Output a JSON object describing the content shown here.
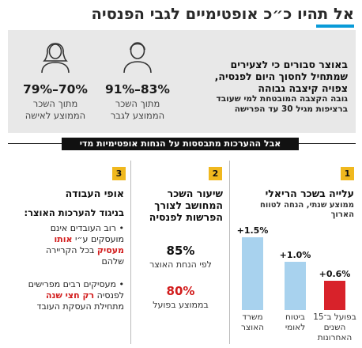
{
  "title": "אל תהיו כ״כ אופטימיים לגבי הפנסיה",
  "colors": {
    "accent": "#0a9bd8",
    "bar_blue": "#a8d2ee",
    "bar_red": "#d8222a",
    "badge": "#f0b81e",
    "highlight": "#d21c1c"
  },
  "intro": {
    "lead": [
      "באוצר סבורים כי לצעירים",
      "שמתחיל לחסוך היום לפנסיה,",
      "צפויה קיצבה גבוהה"
    ],
    "detail": [
      "גובה הקצבה המובטחת למי שעובד",
      "ברציפות מגיל 30 עד הפרישה"
    ],
    "men": {
      "icon": "male-avatar-icon",
      "range": "91%–83%",
      "sub1": "מתוך השכר",
      "sub2": "הממוצע לגבר"
    },
    "women": {
      "icon": "female-avatar-icon",
      "range": "79%–70%",
      "sub1": "מתוך השכר",
      "sub2": "הממוצע לאישה"
    }
  },
  "banner": "אבל ההערכות מתבססות על הנחות אופטימיות מדי",
  "col1": {
    "badge": "1",
    "title": "עלייה בשכר הריאלי",
    "sub": [
      "ממוצע שנתי, הנחה לטווח",
      "הארוך"
    ],
    "chart_data": {
      "type": "bar",
      "categories": [
        "משרד האוצר",
        "ביטוח לאומי",
        "בפועל ב־15 השנים האחרונות"
      ],
      "values": [
        1.5,
        1.0,
        0.6
      ],
      "value_labels": [
        "+1.5%",
        "+1.0%",
        "+0.6%"
      ],
      "label_lines": [
        [
          "משרד",
          "האוצר"
        ],
        [
          "ביטוח",
          "לאומי"
        ],
        [
          "בפועל ב־15",
          "השנים",
          "האחרונות"
        ]
      ]
    }
  },
  "col2": {
    "badge": "2",
    "title": [
      "שיעור השכר",
      "המחושב לצורך",
      "הפרשות לפנסיה"
    ],
    "stat1": {
      "value": "85%",
      "label": "לפי הנחת האוצר"
    },
    "stat2": {
      "value": "80%",
      "label": "בממוצע בפועל"
    }
  },
  "col3": {
    "badge": "3",
    "title": "אופי העבודה",
    "subhead": "בניגוד להערכות האוצר:",
    "b1": {
      "l1": "• רוב העובדים אינם",
      "l2a": "מועסקים ע״י ",
      "l2b": "אותו",
      "l3a": "מעסיק",
      "l3b": " בכל הקריירה",
      "l4": "שלהם"
    },
    "b2": {
      "l1": "• מעסיקים רבים מפרישים",
      "l2a": "לפנסיה ",
      "l2b": "רק חצי שנה",
      "l3": "מתחילת העסקת העובד"
    }
  }
}
